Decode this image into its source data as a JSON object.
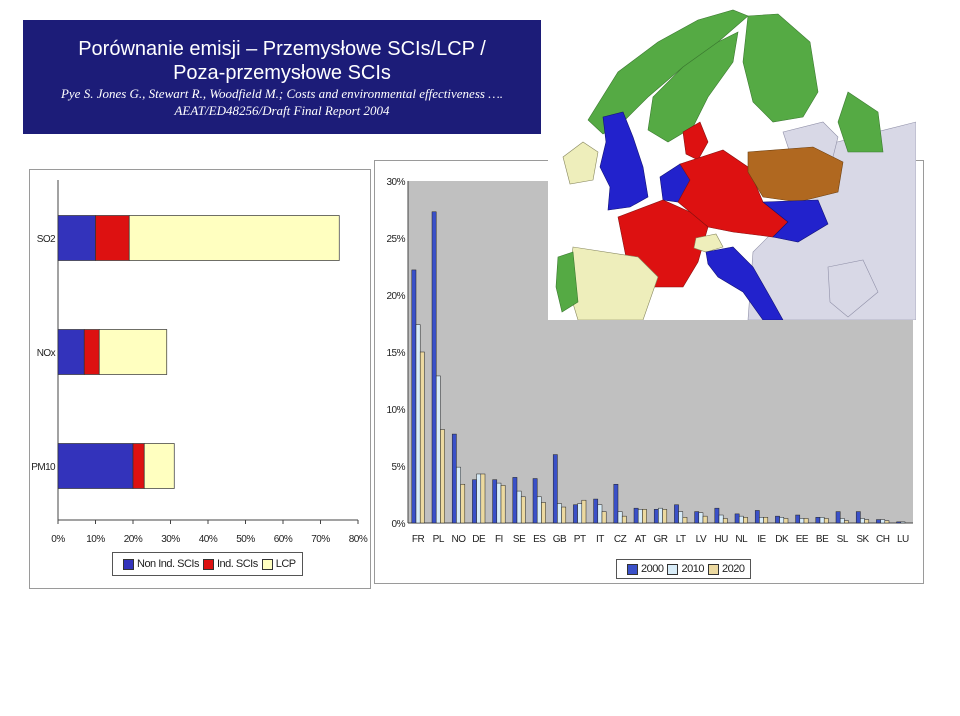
{
  "header": {
    "title_line1": "Porównanie emisji – Przemysłowe SCIs/LCP /",
    "title_line2": "Poza-przemysłowe SCIs",
    "citation_line1": "Pye S. Jones G., Stewart R., Woodfield M.; Costs and environmental effectiveness ….",
    "citation_line2": "AEAT/ED48256/Draft Final Report 2004"
  },
  "colors": {
    "title_bg": "#1c1c78",
    "non_ind_scis": "#3333bb",
    "ind_scis": "#dd1111",
    "lcp": "#ffffc0",
    "c2000": "#3a50c8",
    "c2010": "#d8ecf8",
    "c2020": "#ecd9a0",
    "map_blue": "#2222cc",
    "map_red": "#dd1111",
    "map_green": "#55aa44",
    "map_brown": "#b06820",
    "map_cream": "#eeeebb",
    "map_grey": "#d8d8e6"
  },
  "chart_data": [
    {
      "type": "bar",
      "orientation": "horizontal",
      "stacked": true,
      "categories": [
        "SO2",
        "NOx",
        "PM10"
      ],
      "series": [
        {
          "name": "Non Ind. SCIs",
          "values": [
            10,
            7,
            20
          ]
        },
        {
          "name": "Ind. SCIs",
          "values": [
            9,
            4,
            3
          ]
        },
        {
          "name": "LCP",
          "values": [
            56,
            18,
            8
          ]
        }
      ],
      "xlim": [
        0,
        80
      ],
      "x_ticks": [
        "0%",
        "10%",
        "20%",
        "30%",
        "40%",
        "50%",
        "60%",
        "70%",
        "80%"
      ],
      "legend": "bottom",
      "grid": false
    },
    {
      "type": "bar",
      "categories": [
        "FR",
        "PL",
        "NO",
        "DE",
        "FI",
        "SE",
        "ES",
        "GB",
        "PT",
        "IT",
        "CZ",
        "AT",
        "GR",
        "LT",
        "LV",
        "HU",
        "NL",
        "IE",
        "DK",
        "EE",
        "BE",
        "SL",
        "SK",
        "CH",
        "LU"
      ],
      "series": [
        {
          "name": "2000",
          "values": [
            22.2,
            27.3,
            7.8,
            3.8,
            3.8,
            4.0,
            3.9,
            6.0,
            1.6,
            2.1,
            3.4,
            1.3,
            1.2,
            1.6,
            1.0,
            1.3,
            0.8,
            1.1,
            0.6,
            0.7,
            0.5,
            1.0,
            1.0,
            0.3,
            0.1
          ]
        },
        {
          "name": "2010",
          "values": [
            17.4,
            12.9,
            4.9,
            4.3,
            3.5,
            2.8,
            2.3,
            1.7,
            1.7,
            1.6,
            1.0,
            1.2,
            1.3,
            1.0,
            0.9,
            0.7,
            0.6,
            0.5,
            0.5,
            0.4,
            0.5,
            0.4,
            0.4,
            0.3,
            0.1
          ]
        },
        {
          "name": "2020",
          "values": [
            15.0,
            8.2,
            3.4,
            4.3,
            3.3,
            2.3,
            1.8,
            1.4,
            2.0,
            1.0,
            0.6,
            1.2,
            1.2,
            0.5,
            0.6,
            0.4,
            0.5,
            0.5,
            0.4,
            0.4,
            0.4,
            0.2,
            0.3,
            0.2,
            0.0
          ]
        }
      ],
      "ylim": [
        0,
        30
      ],
      "y_ticks": [
        "0%",
        "5%",
        "10%",
        "15%",
        "20%",
        "25%",
        "30%"
      ],
      "legend": "bottom",
      "grid": false
    }
  ]
}
